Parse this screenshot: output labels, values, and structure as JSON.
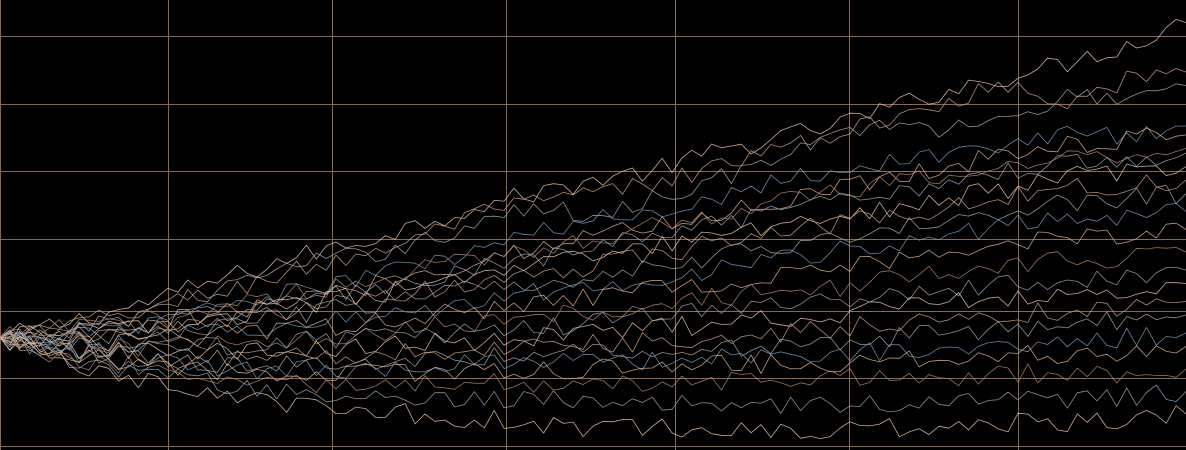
{
  "chart_data": {
    "type": "line",
    "title": "",
    "xlabel": "",
    "ylabel": "",
    "xlim": [
      0,
      100
    ],
    "ylim": [
      0,
      100
    ],
    "grid": true,
    "legend": "none",
    "gridlines": {
      "x": [
        0,
        14.2,
        28,
        42.7,
        56.9,
        71.6,
        85.8
      ],
      "y": [
        1,
        16,
        31,
        47,
        62,
        77,
        92
      ]
    },
    "colors": {
      "background": "#000000",
      "grid": "#8a6a55",
      "series": [
        "#e8c9b0",
        "#c9a58c",
        "#a9a9a9",
        "#7f9bb5",
        "#d8b49a",
        "#b08870",
        "#9aa7b4"
      ]
    },
    "series_count": 22,
    "x": [
      0,
      5,
      10,
      15,
      20,
      25,
      30,
      35,
      40,
      45,
      50,
      55,
      60,
      65,
      70,
      75,
      80,
      85,
      90,
      95,
      100
    ],
    "series": [
      {
        "values": [
          25,
          28,
          31,
          35,
          39,
          43,
          46,
          50,
          54,
          57,
          60,
          62,
          66,
          69,
          72,
          76,
          80,
          83,
          86,
          90,
          95
        ]
      },
      {
        "values": [
          25,
          27,
          30,
          33,
          36,
          40,
          43,
          47,
          52,
          55,
          57,
          59,
          63,
          66,
          70,
          73,
          78,
          81,
          78,
          82,
          84
        ]
      },
      {
        "values": [
          25,
          26,
          29,
          33,
          37,
          41,
          43,
          46,
          50,
          54,
          52,
          56,
          60,
          64,
          69,
          73,
          71,
          75,
          78,
          79,
          81
        ]
      },
      {
        "values": [
          25,
          26,
          27,
          30,
          33,
          35,
          38,
          41,
          44,
          48,
          51,
          53,
          56,
          60,
          62,
          64,
          66,
          68,
          70,
          70,
          72
        ]
      },
      {
        "values": [
          25,
          24,
          26,
          29,
          31,
          33,
          36,
          39,
          42,
          45,
          48,
          50,
          52,
          55,
          58,
          61,
          63,
          66,
          68,
          69,
          70
        ]
      },
      {
        "values": [
          25,
          27,
          28,
          30,
          33,
          35,
          37,
          40,
          42,
          45,
          47,
          50,
          52,
          55,
          57,
          59,
          61,
          63,
          65,
          66,
          67
        ]
      },
      {
        "values": [
          25,
          25,
          27,
          29,
          31,
          34,
          35,
          37,
          40,
          42,
          45,
          48,
          50,
          52,
          55,
          57,
          60,
          62,
          64,
          65,
          66
        ]
      },
      {
        "values": [
          25,
          26,
          27,
          28,
          30,
          32,
          34,
          36,
          38,
          41,
          43,
          45,
          47,
          50,
          52,
          54,
          56,
          58,
          61,
          62,
          63
        ]
      },
      {
        "values": [
          25,
          24,
          25,
          27,
          29,
          31,
          33,
          35,
          37,
          39,
          41,
          43,
          46,
          48,
          50,
          52,
          54,
          56,
          58,
          59,
          60
        ]
      },
      {
        "values": [
          25,
          25,
          26,
          27,
          28,
          30,
          32,
          34,
          36,
          37,
          39,
          41,
          43,
          45,
          47,
          49,
          51,
          53,
          55,
          56,
          57
        ]
      },
      {
        "values": [
          25,
          24,
          24,
          26,
          27,
          28,
          29,
          31,
          33,
          35,
          37,
          38,
          40,
          42,
          44,
          46,
          48,
          50,
          52,
          52,
          53
        ]
      },
      {
        "values": [
          25,
          23,
          24,
          25,
          26,
          27,
          28,
          30,
          31,
          33,
          34,
          36,
          37,
          39,
          41,
          42,
          44,
          46,
          47,
          48,
          49
        ]
      },
      {
        "values": [
          25,
          24,
          23,
          23,
          24,
          25,
          26,
          27,
          28,
          30,
          31,
          32,
          34,
          35,
          36,
          38,
          39,
          41,
          42,
          43,
          44
        ]
      },
      {
        "values": [
          25,
          23,
          22,
          23,
          23,
          24,
          25,
          26,
          26,
          27,
          28,
          30,
          31,
          32,
          33,
          35,
          36,
          37,
          38,
          39,
          40
        ]
      },
      {
        "values": [
          25,
          23,
          22,
          21,
          22,
          22,
          23,
          24,
          24,
          25,
          26,
          27,
          28,
          29,
          30,
          32,
          33,
          34,
          35,
          36,
          37
        ]
      },
      {
        "values": [
          25,
          22,
          21,
          20,
          20,
          21,
          21,
          22,
          22,
          23,
          24,
          24,
          25,
          26,
          27,
          28,
          29,
          30,
          31,
          32,
          33
        ]
      },
      {
        "values": [
          25,
          23,
          21,
          20,
          19,
          19,
          20,
          20,
          21,
          21,
          22,
          22,
          23,
          23,
          24,
          25,
          26,
          27,
          28,
          29,
          30
        ]
      },
      {
        "values": [
          25,
          22,
          20,
          19,
          18,
          18,
          18,
          19,
          19,
          20,
          20,
          20,
          21,
          21,
          22,
          22,
          23,
          24,
          24,
          25,
          26
        ]
      },
      {
        "values": [
          25,
          22,
          20,
          18,
          17,
          17,
          17,
          17,
          17,
          18,
          18,
          18,
          19,
          19,
          19,
          20,
          20,
          21,
          21,
          22,
          23
        ]
      },
      {
        "values": [
          25,
          21,
          19,
          17,
          16,
          15,
          15,
          15,
          15,
          15,
          15,
          15,
          15,
          16,
          16,
          16,
          16,
          17,
          17,
          17,
          18
        ]
      },
      {
        "values": [
          25,
          21,
          18,
          16,
          14,
          13,
          12,
          12,
          11,
          11,
          11,
          10,
          10,
          10,
          10,
          10,
          10,
          11,
          11,
          12,
          13
        ]
      },
      {
        "values": [
          25,
          20,
          17,
          14,
          12,
          10,
          9,
          8,
          7,
          6,
          5,
          5,
          4,
          4,
          4,
          5,
          5,
          6,
          6,
          7,
          8
        ]
      }
    ]
  }
}
